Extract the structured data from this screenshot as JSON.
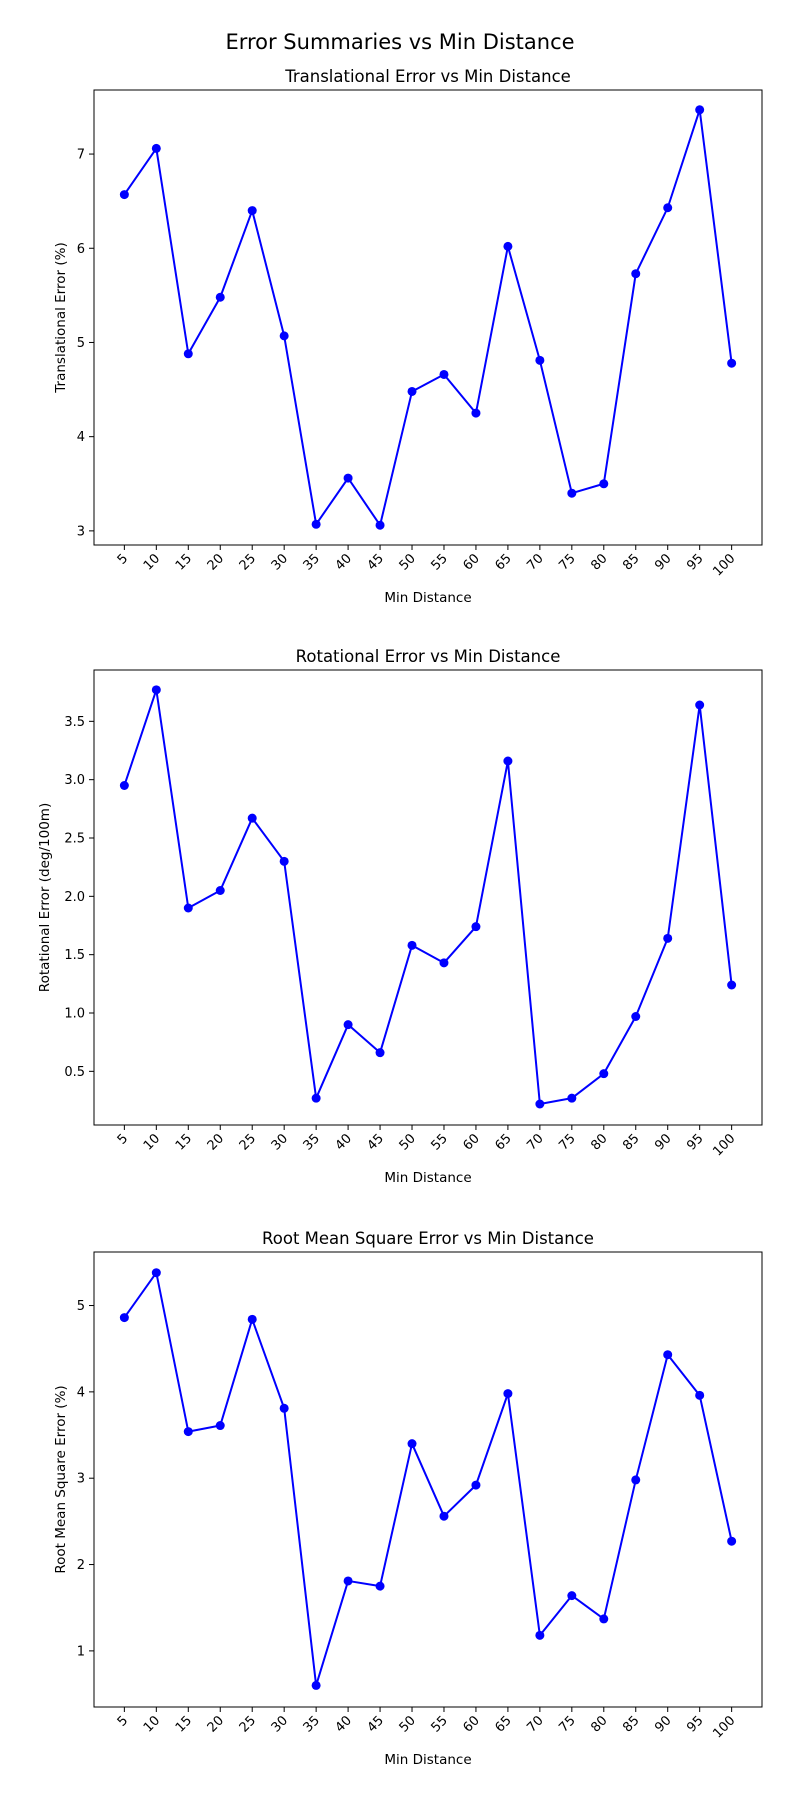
{
  "figure": {
    "suptitle": "Error Summaries vs Min Distance"
  },
  "chart_data": [
    {
      "type": "line",
      "title": "Translational Error vs Min Distance",
      "xlabel": "Min Distance",
      "ylabel": "Translational Error (%)",
      "x": [
        5,
        10,
        15,
        20,
        25,
        30,
        35,
        40,
        45,
        50,
        55,
        60,
        65,
        70,
        75,
        80,
        85,
        90,
        95,
        100
      ],
      "series": [
        {
          "values": [
            6.57,
            7.06,
            4.88,
            5.48,
            6.4,
            5.07,
            3.07,
            3.56,
            3.06,
            4.48,
            4.66,
            4.25,
            6.02,
            4.81,
            3.4,
            3.5,
            5.73,
            6.43,
            7.47,
            4.78
          ]
        }
      ],
      "ylim": [
        2.85,
        7.68
      ],
      "yticks": [
        3,
        4,
        5,
        6,
        7
      ],
      "ytick_labels": [
        "3",
        "4",
        "5",
        "6",
        "7"
      ],
      "color": "#0000ff",
      "marker": "circle",
      "grid": false
    },
    {
      "type": "line",
      "title": "Rotational Error vs Min Distance",
      "xlabel": "Min Distance",
      "ylabel": "Rotational Error (deg/100m)",
      "x": [
        5,
        10,
        15,
        20,
        25,
        30,
        35,
        40,
        45,
        50,
        55,
        60,
        65,
        70,
        75,
        80,
        85,
        90,
        95,
        100
      ],
      "series": [
        {
          "values": [
            2.95,
            3.77,
            1.9,
            2.05,
            2.67,
            2.3,
            0.27,
            0.9,
            0.66,
            1.58,
            1.43,
            1.74,
            3.16,
            0.22,
            0.27,
            0.48,
            0.97,
            1.64,
            3.64,
            1.24
          ]
        }
      ],
      "ylim": [
        0.04,
        3.94
      ],
      "yticks": [
        0.5,
        1.0,
        1.5,
        2.0,
        2.5,
        3.0,
        3.5
      ],
      "ytick_labels": [
        "0.5",
        "1.0",
        "1.5",
        "2.0",
        "2.5",
        "3.0",
        "3.5"
      ],
      "color": "#0000ff",
      "marker": "circle",
      "grid": false
    },
    {
      "type": "line",
      "title": "Root Mean Square Error vs Min Distance",
      "xlabel": "Min Distance",
      "ylabel": "Root Mean Square Error (%)",
      "x": [
        5,
        10,
        15,
        20,
        25,
        30,
        35,
        40,
        45,
        50,
        55,
        60,
        65,
        70,
        75,
        80,
        85,
        90,
        95,
        100
      ],
      "series": [
        {
          "values": [
            4.86,
            5.38,
            3.54,
            3.61,
            4.84,
            3.81,
            0.6,
            1.81,
            1.75,
            3.4,
            2.56,
            2.92,
            3.98,
            1.18,
            1.64,
            1.37,
            2.98,
            4.43,
            3.96,
            2.27
          ]
        }
      ],
      "ylim": [
        0.35,
        5.62
      ],
      "yticks": [
        1,
        2,
        3,
        4,
        5
      ],
      "ytick_labels": [
        "1",
        "2",
        "3",
        "4",
        "5"
      ],
      "color": "#0000ff",
      "marker": "circle",
      "grid": false
    }
  ]
}
